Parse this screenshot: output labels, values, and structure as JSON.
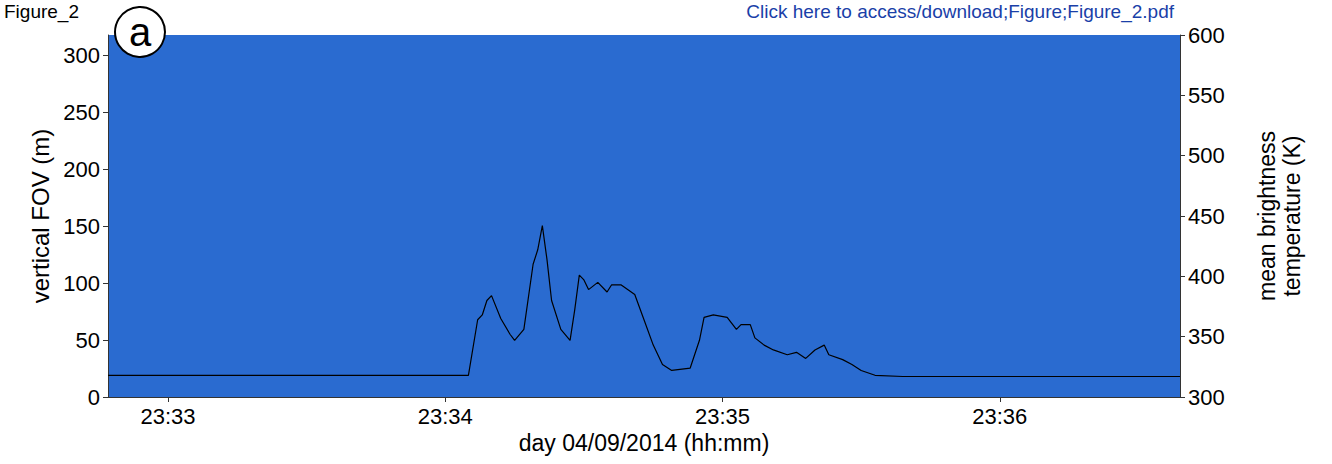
{
  "chart_data": {
    "type": "line",
    "header": "Figure_2",
    "link_text": "Click here to access/download;Figure;Figure_2.pdf",
    "panel": "a",
    "x_label": "day 04/09/2014 (hh:mm)",
    "y_label": "vertical FOV (m)",
    "y2_label": "mean brightness temperature (K)",
    "x": [
      "23:32:47",
      "23:34:05",
      "23:34:07",
      "23:34:08",
      "23:34:09",
      "23:34:10",
      "23:34:12",
      "23:34:14",
      "23:34:15",
      "23:34:17",
      "23:34:19",
      "23:34:20",
      "23:34:21",
      "23:34:22",
      "23:34:23",
      "23:34:25",
      "23:34:27",
      "23:34:28",
      "23:34:29",
      "23:34:30",
      "23:34:31",
      "23:34:33",
      "23:34:35",
      "23:34:36",
      "23:34:38",
      "23:34:41",
      "23:34:43",
      "23:34:45",
      "23:34:47",
      "23:34:49",
      "23:34:53",
      "23:34:55",
      "23:34:56",
      "23:34:58",
      "23:35:01",
      "23:35:03",
      "23:35:04",
      "23:35:06",
      "23:35:07",
      "23:35:09",
      "23:35:11",
      "23:35:14",
      "23:35:16",
      "23:35:18",
      "23:35:20",
      "23:35:22",
      "23:35:23",
      "23:35:26",
      "23:35:28",
      "23:35:30",
      "23:35:33",
      "23:35:39",
      "23:36:39"
    ],
    "series": [
      {
        "axis": "y2",
        "color": "#000000",
        "values": [
          318,
          318,
          364,
          368,
          380,
          384,
          365,
          352,
          347,
          356,
          410,
          422,
          442,
          414,
          380,
          356,
          347,
          372,
          401,
          397,
          389,
          395,
          387,
          393,
          393,
          385,
          364,
          343,
          327,
          322,
          324,
          347,
          366,
          368,
          366,
          356,
          360,
          360,
          349,
          343,
          339,
          335,
          337,
          332,
          339,
          343,
          335,
          331,
          327,
          322,
          318,
          317,
          317
        ]
      }
    ],
    "xlim": [
      "23:32:47",
      "23:36:39"
    ],
    "xticks": [
      {
        "value": "23:33:00",
        "label": "23:33"
      },
      {
        "value": "23:34:00",
        "label": "23:34"
      },
      {
        "value": "23:35:00",
        "label": "23:35"
      },
      {
        "value": "23:36:00",
        "label": "23:36"
      }
    ],
    "ylim": [
      0,
      318
    ],
    "yticks": [
      0,
      50,
      100,
      150,
      200,
      250,
      300
    ],
    "y2lim": [
      300,
      600
    ],
    "y2ticks": [
      300,
      350,
      400,
      450,
      500,
      550,
      600
    ],
    "grid": false
  }
}
